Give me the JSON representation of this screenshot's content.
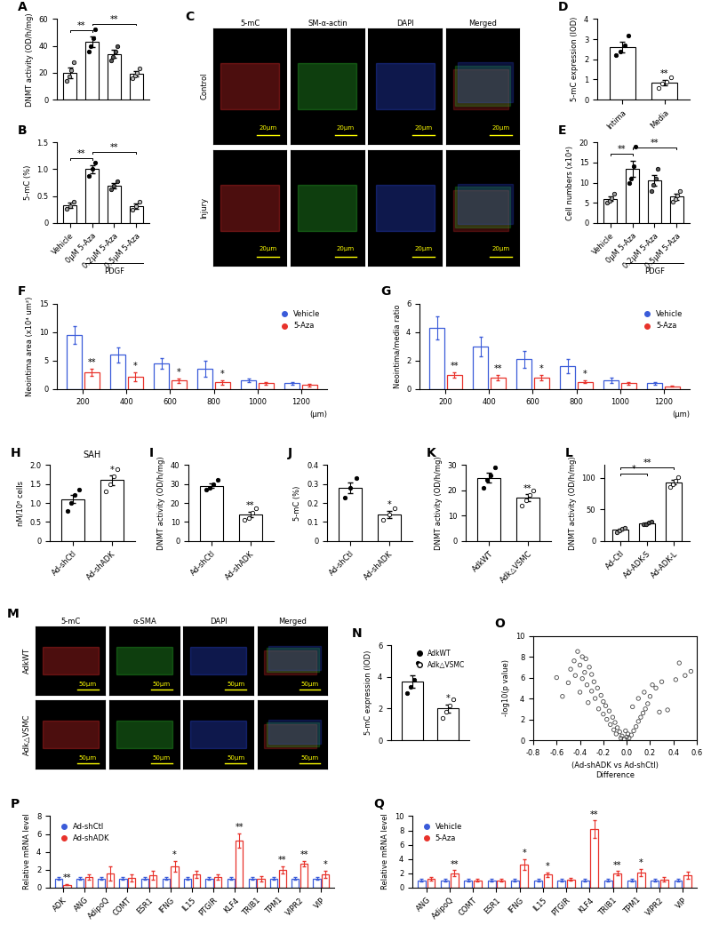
{
  "chart_data": [
    {
      "type": "bar",
      "panel": "A",
      "ylabel": "DNMT activity (OD/h/mg)",
      "ylim": [
        0,
        60
      ],
      "yticks": [
        0,
        20,
        40,
        60
      ],
      "values": [
        20,
        43,
        34,
        19
      ],
      "errors": [
        4,
        4,
        3,
        2
      ],
      "points": [
        [
          14,
          17,
          22,
          28
        ],
        [
          36,
          40,
          46,
          52
        ],
        [
          29,
          32,
          36,
          40
        ],
        [
          16,
          18,
          20,
          23
        ]
      ],
      "colors": [
        "#9e9e9e",
        "#000000",
        "#555555",
        "#bdbdbd"
      ],
      "brackets": [
        {
          "from": 0,
          "to": 1,
          "text": "**"
        },
        {
          "from": 1,
          "to": 3,
          "text": "**"
        }
      ]
    },
    {
      "type": "bar",
      "panel": "B",
      "ylabel": "5-mC (%)",
      "ylim": [
        0,
        1.5
      ],
      "yticks": [
        0,
        0.5,
        1.0,
        1.5
      ],
      "categories": [
        "Vehicle",
        "0μM 5-Aza",
        "0.2μM 5-Aza",
        "0.5μM 5-Aza"
      ],
      "values": [
        0.33,
        1.0,
        0.7,
        0.32
      ],
      "errors": [
        0.05,
        0.08,
        0.05,
        0.05
      ],
      "points": [
        [
          0.26,
          0.32,
          0.4
        ],
        [
          0.88,
          1.0,
          1.12
        ],
        [
          0.62,
          0.7,
          0.78
        ],
        [
          0.25,
          0.32,
          0.4
        ]
      ],
      "colors": [
        "#9e9e9e",
        "#000000",
        "#555555",
        "#bdbdbd"
      ],
      "brackets": [
        {
          "from": 0,
          "to": 1,
          "text": "**"
        },
        {
          "from": 1,
          "to": 3,
          "text": "**"
        }
      ],
      "group_label": {
        "text": "PDGF",
        "from": 1,
        "to": 3
      }
    },
    {
      "type": "image",
      "panel": "C",
      "columns": [
        "5-mC",
        "SM-α-actin",
        "DAPI",
        "Merged"
      ],
      "rows": [
        "Control",
        "Injury"
      ],
      "scale_bar": "20μm"
    },
    {
      "type": "bar",
      "panel": "D",
      "ylabel": "5-mC expression (IOD)",
      "ylim": [
        0,
        4
      ],
      "yticks": [
        0,
        1,
        2,
        3,
        4
      ],
      "categories": [
        "Intima",
        "Media"
      ],
      "values": [
        2.6,
        0.85
      ],
      "errors": [
        0.25,
        0.12
      ],
      "points": [
        [
          2.2,
          2.4,
          2.7,
          3.2
        ],
        [
          0.6,
          0.8,
          0.9,
          1.1
        ]
      ],
      "colors": [
        "#000000",
        "#ffffff"
      ],
      "significance": [
        null,
        "**"
      ]
    },
    {
      "type": "bar",
      "panel": "E",
      "ylabel": "Cell numbers (x10⁴)",
      "ylim": [
        0,
        20
      ],
      "yticks": [
        0,
        5,
        10,
        15,
        20
      ],
      "categories": [
        "Vehicle",
        "0μM 5-Aza",
        "0.2μM 5-Aza",
        "0.5μM 5-Aza"
      ],
      "values": [
        6,
        13.5,
        10.5,
        6.5
      ],
      "errors": [
        0.6,
        2,
        1.3,
        0.8
      ],
      "points": [
        [
          5,
          5.5,
          6.2,
          7.2
        ],
        [
          10,
          11,
          14,
          19
        ],
        [
          8,
          9.5,
          11,
          13.5
        ],
        [
          5.2,
          6,
          6.8,
          8
        ]
      ],
      "colors": [
        "#9e9e9e",
        "#000000",
        "#555555",
        "#bdbdbd"
      ],
      "brackets": [
        {
          "from": 0,
          "to": 1,
          "text": "**"
        },
        {
          "from": 1,
          "to": 3,
          "text": "**"
        }
      ],
      "group_label": {
        "text": "PDGF",
        "from": 1,
        "to": 3
      }
    },
    {
      "type": "grouped_bar",
      "panel": "F",
      "ylabel": "Neointima area (x10⁴ um²)",
      "xlabel": "(μm)",
      "ylim": [
        0,
        15
      ],
      "yticks": [
        0,
        5,
        10,
        15
      ],
      "legend": "upper right",
      "categories": [
        "200",
        "400",
        "600",
        "800",
        "1000",
        "1200"
      ],
      "series": [
        {
          "name": "Vehicle",
          "color": "#3a5bd9",
          "values": [
            9.5,
            6,
            4.5,
            3.5,
            1.5,
            1
          ],
          "errors": [
            1.6,
            1.3,
            0.9,
            1.4,
            0.3,
            0.3
          ]
        },
        {
          "name": "5-Aza",
          "color": "#e8322b",
          "values": [
            3,
            2.2,
            1.5,
            1.2,
            1,
            0.7
          ],
          "errors": [
            0.6,
            0.8,
            0.4,
            0.4,
            0.3,
            0.2
          ],
          "significance": [
            "**",
            "*",
            "*",
            "*",
            null,
            null
          ]
        }
      ]
    },
    {
      "type": "grouped_bar",
      "panel": "G",
      "ylabel": "Neointima/media ratio",
      "xlabel": "(μm)",
      "ylim": [
        0,
        6
      ],
      "yticks": [
        0,
        2,
        4,
        6
      ],
      "legend": "upper right",
      "categories": [
        "200",
        "400",
        "600",
        "800",
        "1000",
        "1200"
      ],
      "series": [
        {
          "name": "Vehicle",
          "color": "#3a5bd9",
          "values": [
            4.3,
            3,
            2.1,
            1.6,
            0.6,
            0.4
          ],
          "errors": [
            0.8,
            0.7,
            0.6,
            0.5,
            0.2,
            0.1
          ]
        },
        {
          "name": "5-Aza",
          "color": "#e8322b",
          "values": [
            1,
            0.8,
            0.8,
            0.5,
            0.4,
            0.2
          ],
          "errors": [
            0.2,
            0.2,
            0.2,
            0.1,
            0.1,
            0.05
          ],
          "significance": [
            "**",
            "**",
            "*",
            "*",
            null,
            null
          ]
        }
      ]
    },
    {
      "type": "bar",
      "panel": "H",
      "title": "SAH",
      "ylabel": "nM/10⁶ cells",
      "ylim": [
        0,
        2
      ],
      "yticks": [
        0,
        0.5,
        1.0,
        1.5,
        2.0
      ],
      "categories": [
        "Ad-shCtl",
        "Ad-shADK"
      ],
      "values": [
        1.1,
        1.6
      ],
      "errors": [
        0.1,
        0.12
      ],
      "points": [
        [
          0.8,
          1.0,
          1.2,
          1.35
        ],
        [
          1.3,
          1.5,
          1.7,
          1.9
        ]
      ],
      "colors": [
        "#000000",
        "#ffffff"
      ],
      "significance": [
        null,
        "*"
      ]
    },
    {
      "type": "bar",
      "panel": "I",
      "ylabel": "DNMT activity (OD/h/mg)",
      "ylim": [
        0,
        40
      ],
      "yticks": [
        0,
        10,
        20,
        30,
        40
      ],
      "categories": [
        "Ad-shCtl",
        "Ad-shADK"
      ],
      "values": [
        29,
        14
      ],
      "errors": [
        1.2,
        1.4
      ],
      "points": [
        [
          27,
          28,
          30,
          32
        ],
        [
          11,
          12,
          15,
          17
        ]
      ],
      "colors": [
        "#000000",
        "#ffffff"
      ],
      "significance": [
        null,
        "**"
      ]
    },
    {
      "type": "bar",
      "panel": "J",
      "ylabel": "5-mC (%)",
      "ylim": [
        0,
        0.4
      ],
      "yticks": [
        0,
        0.1,
        0.2,
        0.3,
        0.4
      ],
      "categories": [
        "Ad-shCtl",
        "Ad-shADK"
      ],
      "values": [
        0.28,
        0.14
      ],
      "errors": [
        0.03,
        0.02
      ],
      "points": [
        [
          0.23,
          0.28,
          0.33
        ],
        [
          0.11,
          0.14,
          0.17
        ]
      ],
      "colors": [
        "#000000",
        "#ffffff"
      ],
      "significance": [
        null,
        "*"
      ]
    },
    {
      "type": "bar",
      "panel": "K",
      "ylabel": "DNMT activity (OD/h/mg)",
      "ylim": [
        0,
        30
      ],
      "yticks": [
        0,
        10,
        20,
        30
      ],
      "categories": [
        "AdkWT",
        "Adk△VSMC"
      ],
      "values": [
        25,
        17
      ],
      "errors": [
        1.8,
        1.4
      ],
      "points": [
        [
          21,
          24,
          26,
          29
        ],
        [
          14,
          16,
          18,
          20
        ]
      ],
      "colors": [
        "#000000",
        "#ffffff"
      ],
      "significance": [
        null,
        "**"
      ]
    },
    {
      "type": "bar",
      "panel": "L",
      "ylabel": "DNMT activity (OD/h/mg)",
      "ylim": [
        0,
        120
      ],
      "yticks": [
        0,
        50,
        100
      ],
      "categories": [
        "Ad-Ctl",
        "Ad-ADK-S",
        "Ad-ADK-L"
      ],
      "values": [
        18,
        28,
        93
      ],
      "errors": [
        1.5,
        1.2,
        3.5
      ],
      "points": [
        [
          14,
          16,
          19,
          21
        ],
        [
          26,
          27,
          29,
          31
        ],
        [
          85,
          89,
          95,
          101
        ]
      ],
      "colors": [
        "#9e9e9e",
        "#555555",
        "#ffffff"
      ],
      "brackets": [
        {
          "from": 0,
          "to": 1,
          "text": "*"
        },
        {
          "from": 0,
          "to": 2,
          "text": "**"
        }
      ]
    },
    {
      "type": "image",
      "panel": "M",
      "columns": [
        "5-mC",
        "α-SMA",
        "DAPI",
        "Merged"
      ],
      "rows": [
        "AdkWT",
        "Adk△VSMC"
      ],
      "scale_bar": "50μm"
    },
    {
      "type": "bar",
      "panel": "N",
      "ylabel": "5-mC expression (IOD)",
      "ylim": [
        0,
        6
      ],
      "yticks": [
        0,
        2,
        4,
        6
      ],
      "categories": [
        "AdkWT",
        "Adk△VSMC"
      ],
      "values": [
        3.7,
        2.0
      ],
      "errors": [
        0.4,
        0.25
      ],
      "points": [
        [
          3.0,
          3.4,
          3.8,
          4.9
        ],
        [
          1.4,
          1.8,
          2.2,
          2.6
        ]
      ],
      "colors": [
        "#000000",
        "#ffffff"
      ],
      "significance": [
        null,
        "*"
      ],
      "legend": "upper right",
      "tick_labels": "y"
    },
    {
      "type": "scatter",
      "panel": "O",
      "ylabel": "-log10(p value)",
      "xlabel": "(Ad-shADK vs Ad-shCtl)\nDifference",
      "xlim": [
        -0.8,
        0.6
      ],
      "xticks": [
        -0.8,
        -0.6,
        -0.4,
        -0.2,
        0.0,
        0.2,
        0.4,
        0.6
      ],
      "ylim": [
        0,
        10
      ],
      "yticks": [
        0,
        2,
        4,
        6,
        8,
        10
      ],
      "marker": "o",
      "x": [
        -0.42,
        -0.38,
        -0.45,
        -0.35,
        -0.4,
        -0.32,
        -0.48,
        -0.36,
        -0.3,
        -0.44,
        -0.38,
        -0.28,
        -0.5,
        -0.34,
        -0.25,
        -0.3,
        -0.4,
        -0.22,
        -0.27,
        -0.2,
        -0.33,
        -0.18,
        -0.24,
        -0.15,
        -0.2,
        -0.12,
        -0.17,
        -0.1,
        -0.14,
        -0.08,
        -0.11,
        -0.06,
        -0.09,
        -0.04,
        -0.05,
        -0.02,
        -0.6,
        -0.55,
        0.02,
        0.04,
        0.06,
        0.08,
        0.1,
        0.12,
        0.14,
        0.05,
        0.16,
        0.18,
        0.1,
        0.2,
        0.15,
        0.25,
        0.22,
        0.3,
        0.42,
        0.5,
        0.55,
        0.45,
        0.35,
        0.28,
        0.0,
        0.01,
        -0.01
      ],
      "values": [
        8.5,
        8.0,
        7.6,
        7.8,
        7.2,
        7.0,
        6.8,
        6.5,
        6.3,
        6.2,
        5.9,
        5.6,
        5.5,
        5.3,
        5.0,
        4.7,
        4.6,
        4.3,
        4.0,
        3.7,
        3.6,
        3.3,
        3.0,
        2.8,
        2.5,
        2.2,
        2.0,
        1.7,
        1.5,
        1.2,
        1.0,
        0.8,
        0.6,
        0.4,
        0.2,
        0.1,
        6.0,
        4.2,
        0.2,
        0.5,
        0.9,
        1.3,
        1.8,
        2.2,
        2.6,
        3.2,
        3.0,
        3.5,
        4.0,
        4.2,
        4.6,
        5.0,
        5.3,
        5.6,
        5.8,
        6.2,
        6.6,
        7.4,
        2.9,
        2.7,
        0.3,
        0.6,
        0.9
      ]
    },
    {
      "type": "grouped_bar",
      "panel": "P",
      "ylabel": "Relative mRNA level",
      "ylim": [
        0,
        8
      ],
      "yticks": [
        0,
        2,
        4,
        6,
        8
      ],
      "legend": "upper left",
      "categories": [
        "ADK",
        "ANG",
        "AdipoQ",
        "COMT",
        "ESR1",
        "IFNG",
        "IL15",
        "PTGIR",
        "KLF4",
        "TRIB1",
        "TPM1",
        "VIPR2",
        "VIP"
      ],
      "series": [
        {
          "name": "Ad-shCtl",
          "color": "#3a5bd9",
          "values": [
            1.0,
            1.0,
            1.0,
            1.0,
            1.0,
            1.0,
            1.0,
            1.0,
            1.0,
            1.0,
            1.0,
            1.0,
            1.0
          ],
          "errors": [
            0.15,
            0.15,
            0.15,
            0.15,
            0.15,
            0.15,
            0.15,
            0.15,
            0.15,
            0.15,
            0.15,
            0.15,
            0.15
          ]
        },
        {
          "name": "Ad-shADK",
          "color": "#e8322b",
          "values": [
            0.3,
            1.2,
            1.6,
            1.1,
            1.4,
            2.4,
            1.5,
            1.2,
            5.3,
            1.0,
            2.0,
            2.7,
            1.5
          ],
          "errors": [
            0.08,
            0.3,
            0.8,
            0.4,
            0.5,
            0.6,
            0.4,
            0.3,
            0.8,
            0.3,
            0.4,
            0.3,
            0.4
          ],
          "significance": [
            "**",
            null,
            null,
            null,
            null,
            "*",
            null,
            null,
            "**",
            null,
            "**",
            "**",
            "*"
          ]
        }
      ]
    },
    {
      "type": "grouped_bar",
      "panel": "Q",
      "ylabel": "Relative mRNA level",
      "ylim": [
        0,
        10
      ],
      "yticks": [
        0,
        2,
        4,
        6,
        8,
        10
      ],
      "legend": "upper left",
      "categories": [
        "ANG",
        "AdipoQ",
        "COMT",
        "ESR1",
        "IFNG",
        "IL15",
        "PTGIR",
        "KLF4",
        "TRIB1",
        "TPM1",
        "VIPR2",
        "VIP"
      ],
      "series": [
        {
          "name": "Vehicle",
          "color": "#3a5bd9",
          "values": [
            1.0,
            1.0,
            1.0,
            1.0,
            1.0,
            1.0,
            1.0,
            1.0,
            1.0,
            1.0,
            1.0,
            1.0
          ],
          "errors": [
            0.15,
            0.15,
            0.15,
            0.15,
            0.15,
            0.15,
            0.15,
            0.15,
            0.15,
            0.15,
            0.15,
            0.15
          ]
        },
        {
          "name": "5-Aza",
          "color": "#e8322b",
          "values": [
            1.2,
            2.0,
            1.0,
            1.0,
            3.2,
            1.8,
            1.1,
            8.2,
            2.0,
            2.1,
            1.1,
            1.7
          ],
          "errors": [
            0.3,
            0.4,
            0.2,
            0.2,
            0.8,
            0.3,
            0.2,
            1.2,
            0.3,
            0.5,
            0.3,
            0.5
          ],
          "significance": [
            null,
            "**",
            null,
            null,
            "*",
            "*",
            null,
            "**",
            "**",
            "*",
            null,
            null
          ]
        }
      ]
    }
  ]
}
